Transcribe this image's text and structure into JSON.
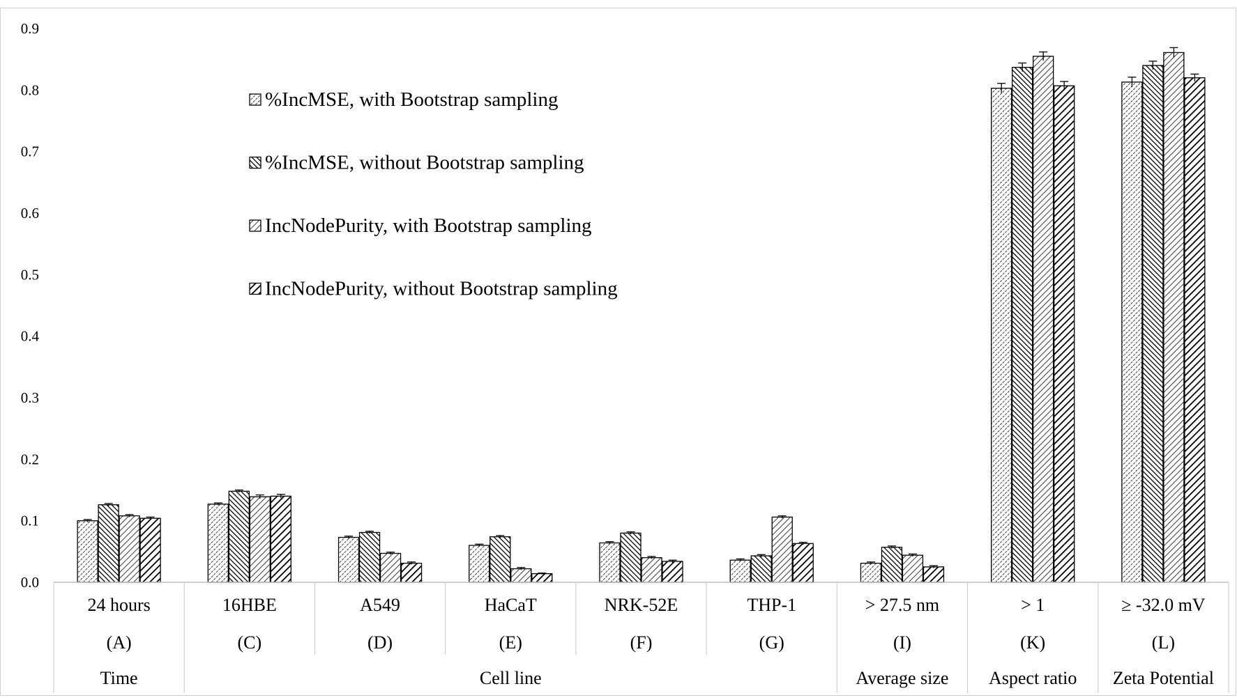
{
  "chart_data": {
    "type": "bar",
    "title": "",
    "xlabel": "",
    "ylabel": "",
    "ylim": [
      0,
      0.9
    ],
    "yticks": [
      "0.0",
      "0.1",
      "0.2",
      "0.3",
      "0.4",
      "0.5",
      "0.6",
      "0.7",
      "0.8",
      "0.9"
    ],
    "grid": false,
    "legend_position": "upper-left-inside",
    "categories": [
      "24 hours",
      "16HBE",
      "A549",
      "HaCaT",
      "NRK-52E",
      "THP-1",
      "> 27.5 nm",
      "> 1",
      "≥ -32.0 mV"
    ],
    "codes": [
      "(A)",
      "(C)",
      "(D)",
      "(E)",
      "(F)",
      "(G)",
      "(I)",
      "(K)",
      "(L)"
    ],
    "groups": [
      {
        "label": "Time",
        "count": 1
      },
      {
        "label": "Cell line",
        "count": 5
      },
      {
        "label": "Average size",
        "count": 1
      },
      {
        "label": "Aspect ratio",
        "count": 1
      },
      {
        "label": "Zeta Potential",
        "count": 1
      }
    ],
    "series": [
      {
        "name": "%IncMSE, with Bootstrap sampling",
        "pattern": "dots",
        "values": [
          0.1,
          0.127,
          0.073,
          0.06,
          0.064,
          0.036,
          0.031,
          0.803,
          0.813
        ],
        "errors": [
          0.002,
          0.002,
          0.002,
          0.002,
          0.002,
          0.002,
          0.002,
          0.008,
          0.008
        ]
      },
      {
        "name": "%IncMSE, without Bootstrap sampling",
        "pattern": "dense-hatch",
        "values": [
          0.126,
          0.148,
          0.081,
          0.074,
          0.08,
          0.043,
          0.057,
          0.837,
          0.84
        ],
        "errors": [
          0.002,
          0.002,
          0.002,
          0.002,
          0.002,
          0.002,
          0.002,
          0.007,
          0.007
        ]
      },
      {
        "name": "IncNodePurity, with Bootstrap sampling",
        "pattern": "light-hatch",
        "values": [
          0.108,
          0.139,
          0.047,
          0.022,
          0.04,
          0.106,
          0.044,
          0.855,
          0.861
        ],
        "errors": [
          0.002,
          0.003,
          0.002,
          0.002,
          0.002,
          0.002,
          0.002,
          0.007,
          0.008
        ]
      },
      {
        "name": "IncNodePurity, without Bootstrap sampling",
        "pattern": "bold-hatch",
        "values": [
          0.104,
          0.14,
          0.031,
          0.014,
          0.034,
          0.063,
          0.025,
          0.807,
          0.82
        ],
        "errors": [
          0.002,
          0.003,
          0.002,
          0.001,
          0.002,
          0.002,
          0.002,
          0.007,
          0.006
        ]
      }
    ]
  }
}
